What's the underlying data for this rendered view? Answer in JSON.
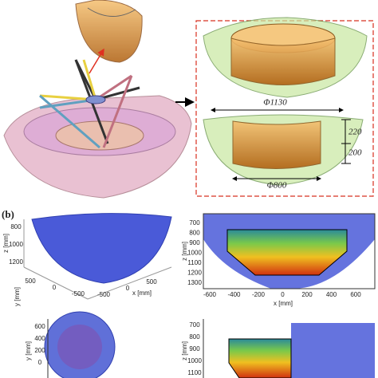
{
  "panel_a": {
    "dimensions": {
      "top_diameter": "Φ1130",
      "upper_height": "220",
      "lower_height": "200",
      "bottom_diameter": "Φ800"
    }
  },
  "panel_b": {
    "label": "(b)",
    "plots": [
      {
        "z_label": "z [mm]",
        "z_ticks": [
          800,
          1000,
          1200
        ],
        "y_label": "y [mm]",
        "y_ticks": [
          500,
          0,
          -500
        ],
        "x_label": "x [mm]",
        "x_ticks": [
          -500,
          0,
          500
        ]
      },
      {
        "y_label": "z [mm]",
        "y_ticks": [
          700,
          800,
          900,
          1000,
          1100,
          1200,
          1300
        ],
        "x_label": "x [mm]",
        "x_ticks": [
          -600,
          -400,
          -200,
          0,
          200,
          400,
          600
        ]
      },
      {
        "y_label": "y [mm]",
        "y_ticks": [
          600,
          400,
          200,
          0
        ]
      },
      {
        "y_label": "z [mm]",
        "y_ticks": [
          700,
          800,
          900,
          1000,
          1100
        ]
      }
    ]
  }
}
